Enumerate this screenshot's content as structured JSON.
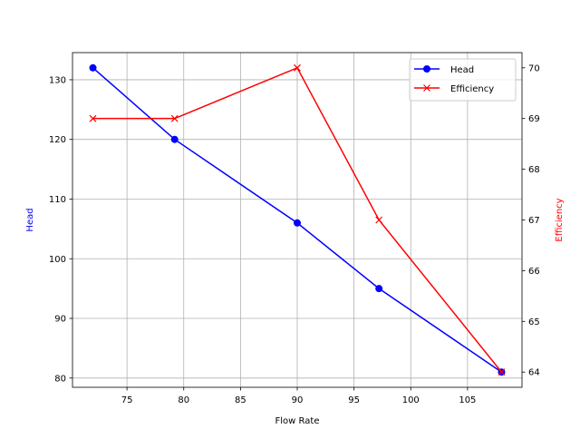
{
  "chart_data": {
    "type": "line",
    "title": "",
    "xlabel": "Flow Rate",
    "ylabel": "Head",
    "ylabel_right": "Efficiency",
    "x": [
      72,
      79.2,
      90,
      97.2,
      108
    ],
    "xlim": [
      70.2,
      109.8
    ],
    "ylim": [
      78.45,
      134.55
    ],
    "ylim_right": [
      63.7,
      70.3
    ],
    "xticks": [
      75,
      80,
      85,
      90,
      95,
      100,
      105
    ],
    "yticks": [
      80,
      90,
      100,
      110,
      120,
      130
    ],
    "yticks_right": [
      64,
      65,
      66,
      67,
      68,
      69,
      70
    ],
    "grid": true,
    "legend_position": "top-right",
    "series": [
      {
        "name": "Head",
        "axis": "left",
        "values": [
          132,
          120,
          106,
          95,
          81
        ],
        "color": "#0000ff",
        "marker": "circle"
      },
      {
        "name": "Efficiency",
        "axis": "right",
        "values": [
          69,
          69,
          70,
          67,
          64
        ],
        "color": "#ff0000",
        "marker": "x"
      }
    ]
  }
}
